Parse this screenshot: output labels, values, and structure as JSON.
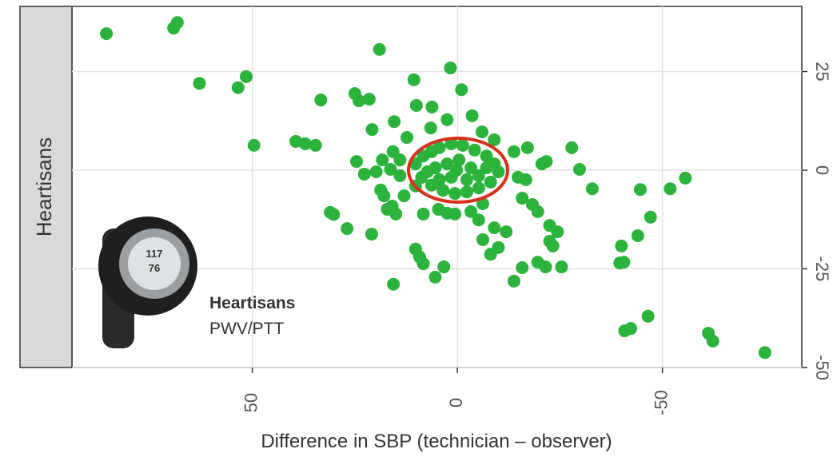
{
  "chart_data": {
    "type": "scatter",
    "facet_label": "Heartisans",
    "x_label": "Difference in SBP (technician – observer)",
    "annotation_title": "Heartisans",
    "annotation_subtitle": "PWV/PTT",
    "device_readings": [
      "117",
      "76"
    ],
    "xlim": [
      94,
      -84
    ],
    "xticks": [
      50,
      0,
      -50
    ],
    "ylim": [
      -50,
      41.5
    ],
    "yticks": [
      25,
      0,
      -25,
      -50
    ],
    "grid": true,
    "color": "#2bb33c",
    "highlight_color": "#d9301c",
    "x": [
      85.6,
      69.2,
      68.3,
      62.9,
      53.5,
      51.5,
      49.6,
      33.3,
      39.4,
      37.1,
      34.6,
      31,
      30.2,
      26.9,
      20.9,
      19,
      25,
      24,
      21.5,
      24.6,
      22.7,
      20.8,
      18.7,
      17.9,
      17.1,
      15.9,
      15.6,
      10.6,
      10,
      6.2,
      1.7,
      -1,
      -3.6,
      15.4,
      10.2,
      9.2,
      8.3,
      5.4,
      3.3,
      8.3,
      4.6,
      10.2,
      14,
      15.7,
      12.3,
      6.5,
      2.5,
      -6,
      -9,
      -13.8,
      -17.1,
      -21.7,
      -20.6,
      -27.9,
      -29.8,
      -32.9,
      -14.8,
      -16.7,
      -15.8,
      -18.3,
      -19.6,
      -22.5,
      -24.4,
      -22.5,
      -23.3,
      -19.6,
      -21.5,
      -25.4,
      -13.8,
      -15.8,
      -10,
      -8.1,
      -6.2,
      -9,
      -11.9,
      -5.2,
      -6.2,
      -3.3,
      0.6,
      2.5,
      -44.6,
      -51.9,
      -55.6,
      -47.1,
      -44,
      -40,
      -39.6,
      -40.6,
      -46.5,
      -40.8,
      -42.3,
      -61.2,
      -62.3,
      -75,
      10.2,
      8.3,
      6.3,
      4.4,
      1.5,
      -1.3,
      -4.2,
      -7.1,
      -9,
      -10,
      -8.1,
      -5.2,
      -2.3,
      0.6,
      3.5,
      6.3,
      8.7,
      5.4,
      2.5,
      -0.4,
      -3.3,
      -5.2,
      -2.3,
      1.5,
      4.4,
      0.2,
      -7.1,
      7.3,
      18.3,
      19.8,
      16.3,
      14,
      13,
      15
    ],
    "y": [
      34.6,
      36,
      37.4,
      22,
      20.9,
      23.7,
      6.3,
      17.8,
      7.3,
      6.7,
      6.3,
      -10.7,
      -11.2,
      -14.8,
      -16.2,
      30.6,
      19.4,
      17.6,
      18,
      2.2,
      -1,
      10.3,
      -5,
      -6.5,
      -9.9,
      -9.1,
      -28.9,
      22.9,
      16.4,
      16,
      25.9,
      20.4,
      13.8,
      12.3,
      -20,
      -22,
      -23.7,
      -27.1,
      -24.5,
      -11.1,
      -9.9,
      -4,
      2.6,
      4.7,
      8.3,
      10.7,
      12.8,
      9.7,
      7.7,
      4.7,
      5.7,
      2.2,
      1.6,
      5.7,
      0.2,
      -4.7,
      -1.8,
      -2.4,
      -7.1,
      -8.7,
      -10.5,
      -14,
      -15.6,
      -18,
      -19.2,
      -23.3,
      -24.5,
      -24.5,
      -28.1,
      -24.7,
      -19.6,
      -21.3,
      -17.6,
      -14.6,
      -15.6,
      -12.6,
      -8.5,
      -10.5,
      -11.1,
      -10.9,
      -4.9,
      -4.7,
      -2,
      -11.9,
      -16.6,
      -19.2,
      -23.5,
      -23.3,
      -37,
      -40.7,
      -40.1,
      -41.3,
      -43.3,
      -46.2,
      1.6,
      3.6,
      4.7,
      5.7,
      6.7,
      6.3,
      5.1,
      3.6,
      1.6,
      -0.4,
      -3,
      -4.5,
      -5.5,
      -5.9,
      -5.1,
      -3.8,
      -1.8,
      0.6,
      1.6,
      2.6,
      0.6,
      -1.4,
      -2.4,
      -1.8,
      -2.4,
      0,
      0.6,
      -0.4,
      2.6,
      -0.4,
      0.2,
      -1.4,
      -6.5,
      -11.1
    ]
  }
}
